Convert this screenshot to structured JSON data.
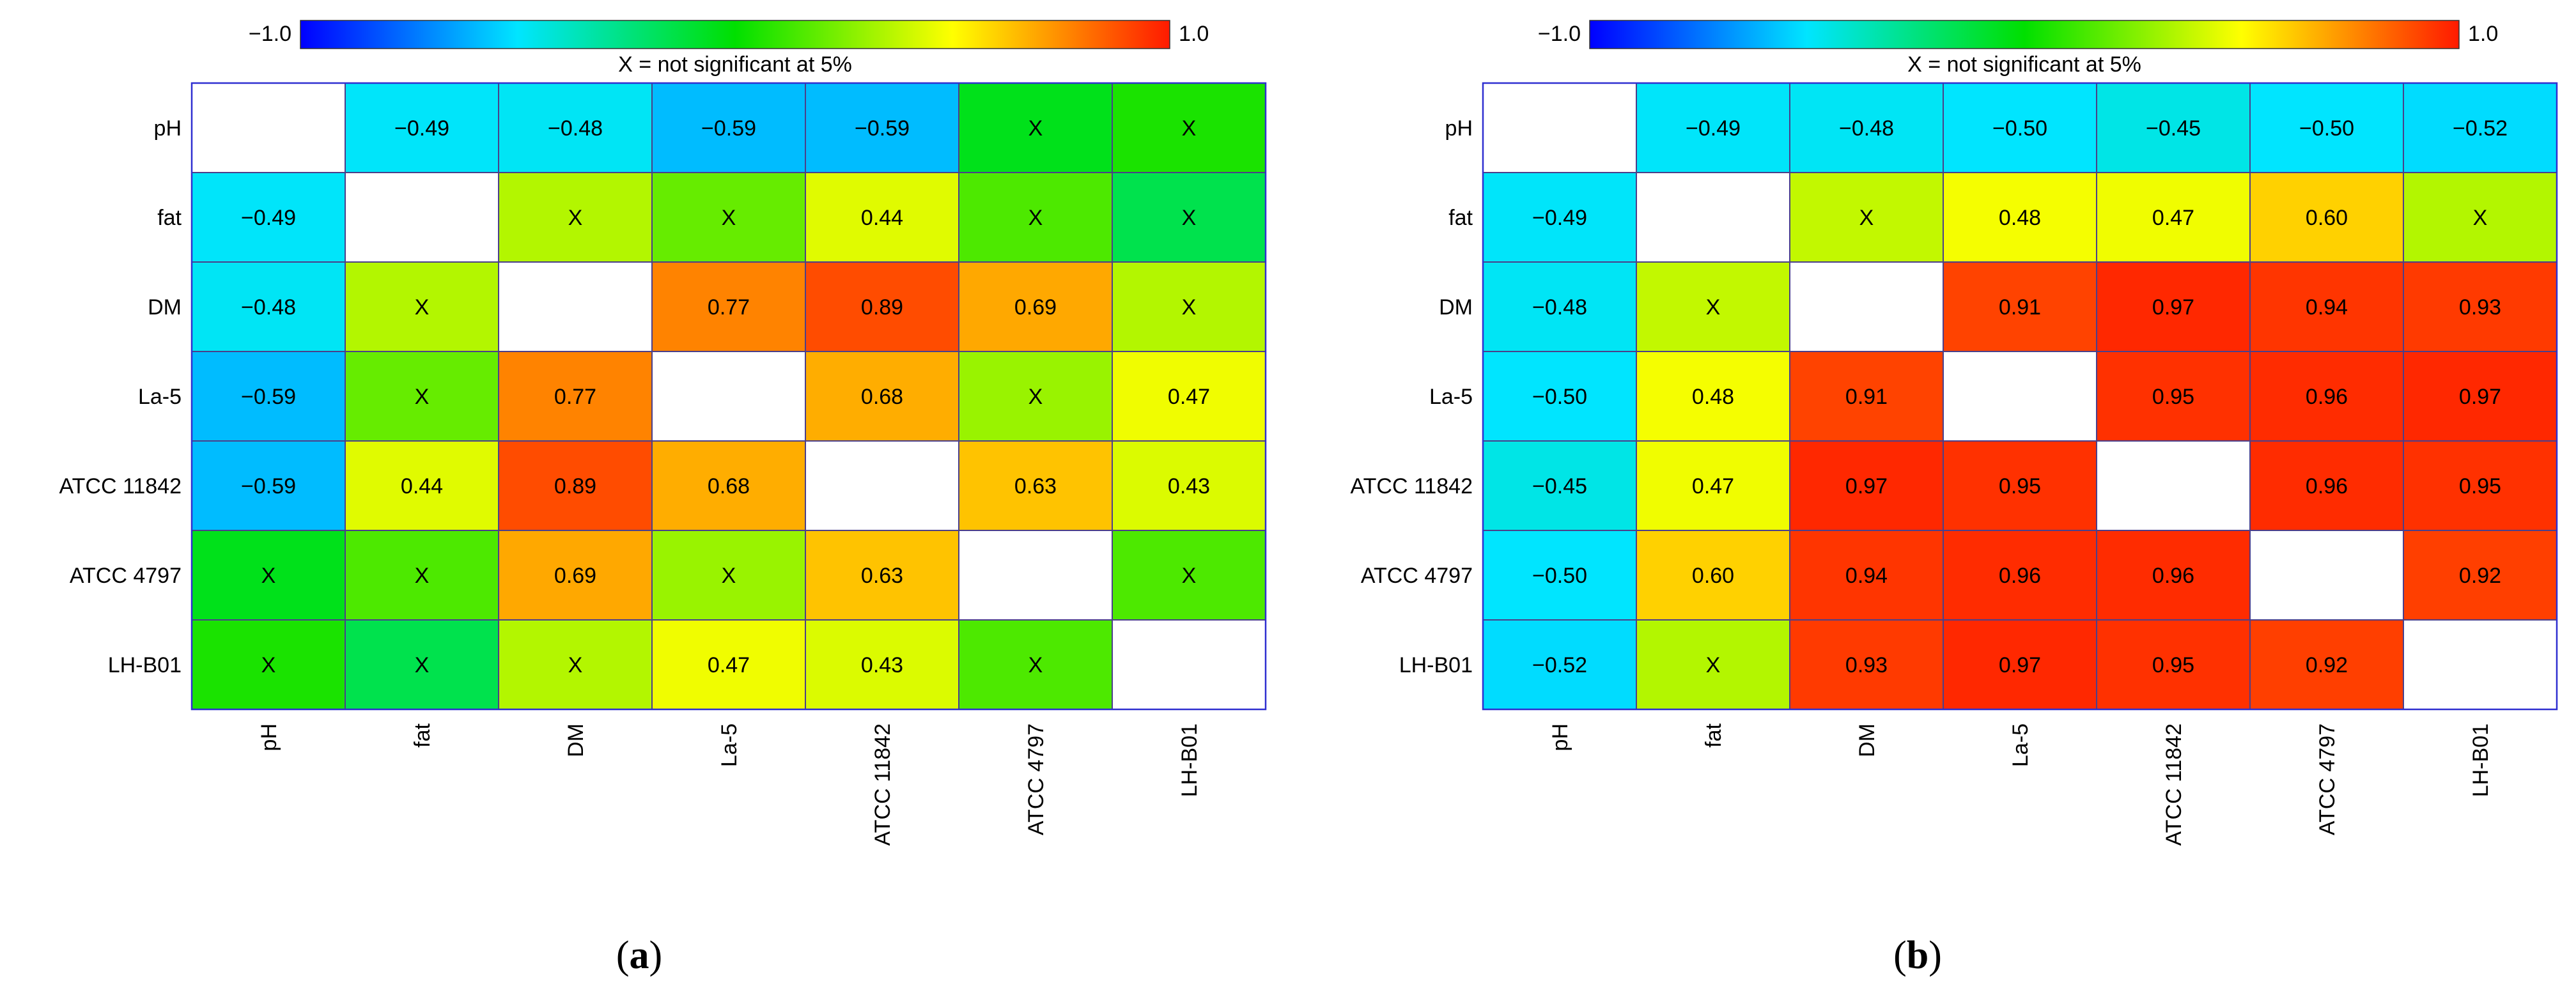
{
  "colorbar": {
    "min_label": "−1.0",
    "max_label": "1.0",
    "stops": [
      {
        "v": -1.0,
        "c": "#0000ff"
      },
      {
        "v": -0.5,
        "c": "#00e5ff"
      },
      {
        "v": 0.0,
        "c": "#00e000"
      },
      {
        "v": 0.5,
        "c": "#ffff00"
      },
      {
        "v": 1.0,
        "c": "#ff1a00"
      }
    ]
  },
  "missing_label": "X",
  "diag_color": "#ffffff",
  "grid_color": "#4b3f8a",
  "chart_data": [
    {
      "type": "heatmap",
      "subtitle_prefix": "(",
      "subtitle_letter": "a",
      "subtitle_suffix": ")",
      "note": "X = not significant at 5%",
      "rows": [
        "pH",
        "fat",
        "DM",
        "La-5",
        "ATCC 11842",
        "ATCC 4797",
        "LH-B01"
      ],
      "cols": [
        "pH",
        "fat",
        "DM",
        "La-5",
        "ATCC 11842",
        "ATCC 4797",
        "LH-B01"
      ],
      "labels": [
        [
          "",
          "−0.49",
          "−0.48",
          "−0.59",
          "−0.59",
          "X",
          "X"
        ],
        [
          "−0.49",
          "",
          "X",
          "X",
          "0.44",
          "X",
          "X"
        ],
        [
          "−0.48",
          "X",
          "",
          "0.77",
          "0.89",
          "0.69",
          "X"
        ],
        [
          "−0.59",
          "X",
          "0.77",
          "",
          "0.68",
          "X",
          "0.47"
        ],
        [
          "−0.59",
          "0.44",
          "0.89",
          "0.68",
          "",
          "0.63",
          "0.43"
        ],
        [
          "X",
          "X",
          "0.69",
          "X",
          "0.63",
          "",
          "X"
        ],
        [
          "X",
          "X",
          "X",
          "0.47",
          "0.43",
          "X",
          ""
        ]
      ],
      "values": [
        [
          null,
          -0.49,
          -0.48,
          -0.59,
          -0.59,
          -0.05,
          0.05
        ],
        [
          -0.49,
          null,
          0.35,
          0.2,
          0.44,
          0.15,
          -0.15
        ],
        [
          -0.48,
          0.35,
          null,
          0.77,
          0.89,
          0.69,
          0.35
        ],
        [
          -0.59,
          0.2,
          0.77,
          null,
          0.68,
          0.3,
          0.47
        ],
        [
          -0.59,
          0.44,
          0.89,
          0.68,
          null,
          0.63,
          0.43
        ],
        [
          -0.05,
          0.15,
          0.69,
          0.3,
          0.63,
          null,
          0.15
        ],
        [
          0.05,
          -0.15,
          0.35,
          0.47,
          0.43,
          0.15,
          null
        ]
      ]
    },
    {
      "type": "heatmap",
      "subtitle_prefix": "(",
      "subtitle_letter": "b",
      "subtitle_suffix": ")",
      "note": "X = not significant at 5%",
      "rows": [
        "pH",
        "fat",
        "DM",
        "La-5",
        "ATCC 11842",
        "ATCC 4797",
        "LH-B01"
      ],
      "cols": [
        "pH",
        "fat",
        "DM",
        "La-5",
        "ATCC 11842",
        "ATCC 4797",
        "LH-B01"
      ],
      "labels": [
        [
          "",
          "−0.49",
          "−0.48",
          "−0.50",
          "−0.45",
          "−0.50",
          "−0.52"
        ],
        [
          "−0.49",
          "",
          "X",
          "0.48",
          "0.47",
          "0.60",
          "X"
        ],
        [
          "−0.48",
          "X",
          "",
          "0.91",
          "0.97",
          "0.94",
          "0.93"
        ],
        [
          "−0.50",
          "0.48",
          "0.91",
          "",
          "0.95",
          "0.96",
          "0.97"
        ],
        [
          "−0.45",
          "0.47",
          "0.97",
          "0.95",
          "",
          "0.96",
          "0.95"
        ],
        [
          "−0.50",
          "0.60",
          "0.94",
          "0.96",
          "0.96",
          "",
          "0.92"
        ],
        [
          "−0.52",
          "X",
          "0.93",
          "0.97",
          "0.95",
          "0.92",
          ""
        ]
      ],
      "values": [
        [
          null,
          -0.49,
          -0.48,
          -0.5,
          -0.45,
          -0.5,
          -0.52
        ],
        [
          -0.49,
          null,
          0.38,
          0.48,
          0.47,
          0.6,
          0.35
        ],
        [
          -0.48,
          0.38,
          null,
          0.91,
          0.97,
          0.94,
          0.93
        ],
        [
          -0.5,
          0.48,
          0.91,
          null,
          0.95,
          0.96,
          0.97
        ],
        [
          -0.45,
          0.47,
          0.97,
          0.95,
          null,
          0.96,
          0.95
        ],
        [
          -0.5,
          0.6,
          0.94,
          0.96,
          0.96,
          null,
          0.92
        ],
        [
          -0.52,
          0.35,
          0.93,
          0.97,
          0.95,
          0.92,
          null
        ]
      ]
    }
  ]
}
